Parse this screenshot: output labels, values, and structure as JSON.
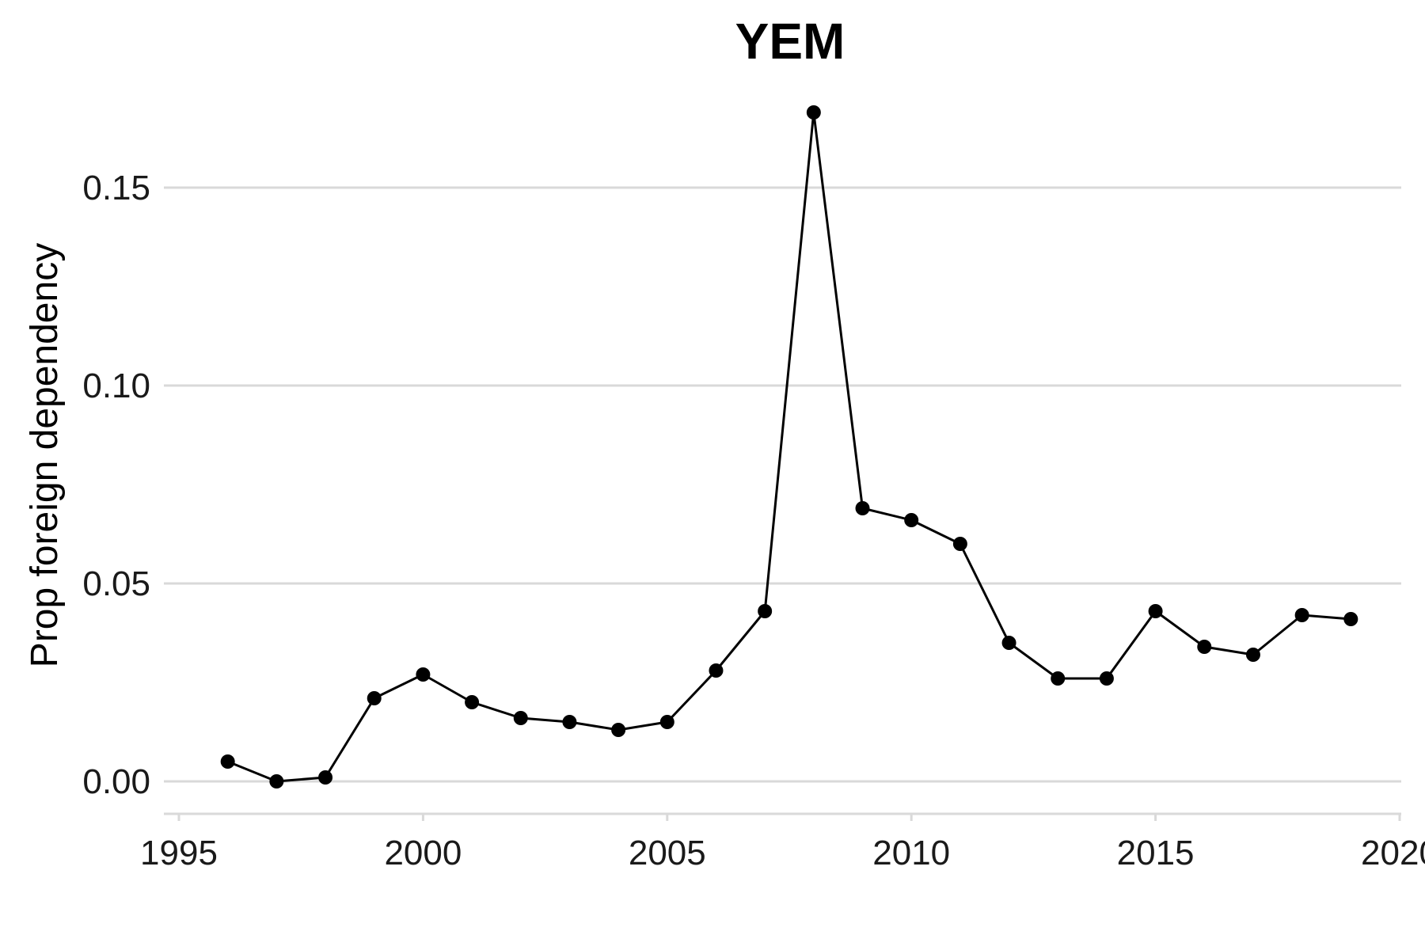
{
  "chart_data": {
    "type": "line",
    "title": "YEM",
    "xlabel": "",
    "ylabel": "Prop foreign dependency",
    "xlim": [
      1995,
      2020
    ],
    "ylim": [
      -0.007,
      0.172
    ],
    "x_ticks": [
      1995,
      2000,
      2005,
      2010,
      2015,
      2020
    ],
    "x_tick_labels": [
      "1995",
      "2000",
      "2005",
      "2010",
      "2015",
      "2020"
    ],
    "y_ticks": [
      0.0,
      0.05,
      0.1,
      0.15
    ],
    "y_tick_labels": [
      "0.00",
      "0.05",
      "0.10",
      "0.15"
    ],
    "grid": "horizontal major",
    "legend": "none",
    "series": [
      {
        "color": "#000000",
        "x": [
          1996,
          1997,
          1998,
          1999,
          2000,
          2001,
          2002,
          2003,
          2004,
          2005,
          2006,
          2007,
          2008,
          2009,
          2010,
          2011,
          2012,
          2013,
          2014,
          2015,
          2016,
          2017,
          2018,
          2019
        ],
        "y": [
          0.005,
          0.0,
          0.001,
          0.021,
          0.027,
          0.02,
          0.016,
          0.015,
          0.013,
          0.015,
          0.028,
          0.043,
          0.169,
          0.069,
          0.066,
          0.06,
          0.035,
          0.026,
          0.026,
          0.043,
          0.034,
          0.032,
          0.042,
          0.041
        ]
      }
    ],
    "colors": {
      "line": "#000000",
      "grid": "#d9d9d9",
      "axis": "#d9d9d9"
    }
  }
}
